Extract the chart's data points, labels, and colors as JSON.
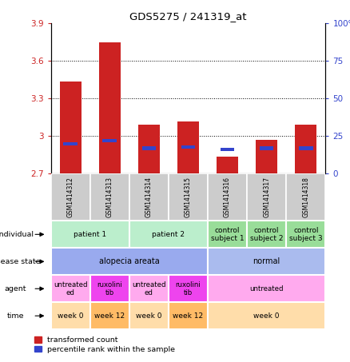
{
  "title": "GDS5275 / 241319_at",
  "samples": [
    "GSM1414312",
    "GSM1414313",
    "GSM1414314",
    "GSM1414315",
    "GSM1414316",
    "GSM1414317",
    "GSM1414318"
  ],
  "red_values": [
    3.44,
    3.75,
    3.09,
    3.12,
    2.84,
    2.97,
    3.09
  ],
  "blue_values_pct": [
    20,
    22,
    17,
    18,
    16,
    17,
    17
  ],
  "ylim_left": [
    2.7,
    3.9
  ],
  "ylim_right": [
    0,
    100
  ],
  "yticks_left": [
    2.7,
    3.0,
    3.3,
    3.6,
    3.9
  ],
  "yticks_right": [
    0,
    25,
    50,
    75,
    100
  ],
  "ytick_labels_left": [
    "2.7",
    "3",
    "3.3",
    "3.6",
    "3.9"
  ],
  "ytick_labels_right": [
    "0",
    "25",
    "50",
    "75",
    "100%"
  ],
  "bar_bottom": 2.7,
  "red_color": "#cc2222",
  "blue_color": "#3344cc",
  "individual_labels": [
    [
      "patient 1",
      0,
      2
    ],
    [
      "patient 2",
      2,
      4
    ],
    [
      "control\nsubject 1",
      4,
      5
    ],
    [
      "control\nsubject 2",
      5,
      6
    ],
    [
      "control\nsubject 3",
      6,
      7
    ]
  ],
  "individual_colors": [
    "#bbeecc",
    "#bbeecc",
    "#99dd99",
    "#99dd99",
    "#99dd99"
  ],
  "disease_state_labels": [
    [
      "alopecia areata",
      0,
      4
    ],
    [
      "normal",
      4,
      7
    ]
  ],
  "disease_state_colors": [
    "#99aaee",
    "#aabbee"
  ],
  "agent_labels": [
    [
      "untreated\ned",
      0,
      1
    ],
    [
      "ruxolini\ntib",
      1,
      2
    ],
    [
      "untreated\ned",
      2,
      3
    ],
    [
      "ruxolini\ntib",
      3,
      4
    ],
    [
      "untreated",
      4,
      7
    ]
  ],
  "agent_colors": [
    "#ffaaee",
    "#ee44ee",
    "#ffaaee",
    "#ee44ee",
    "#ffaaee"
  ],
  "time_labels": [
    [
      "week 0",
      0,
      1
    ],
    [
      "week 12",
      1,
      2
    ],
    [
      "week 0",
      2,
      3
    ],
    [
      "week 12",
      3,
      4
    ],
    [
      "week 0",
      4,
      7
    ]
  ],
  "time_colors": [
    "#ffddaa",
    "#ffbb66",
    "#ffddaa",
    "#ffbb66",
    "#ffddaa"
  ],
  "row_labels_order": [
    "individual",
    "disease state",
    "agent",
    "time"
  ],
  "legend_red": "transformed count",
  "legend_blue": "percentile rank within the sample",
  "label_area_bg": "#cccccc"
}
